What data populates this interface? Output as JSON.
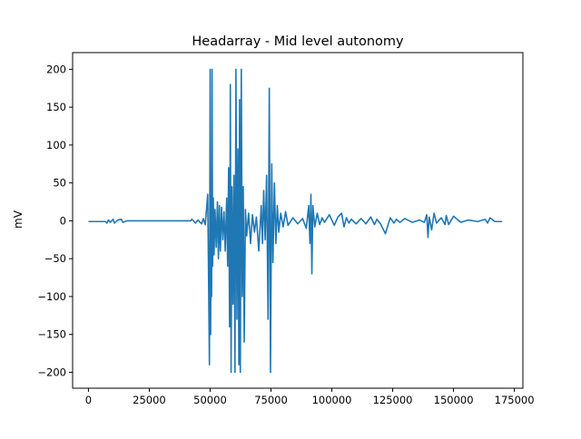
{
  "chart_data": {
    "type": "line",
    "title": "Headarray - Mid level autonomy",
    "xlabel": "",
    "ylabel": "mV",
    "xlim": [
      -6500,
      178500
    ],
    "ylim": [
      -221,
      222
    ],
    "xticks": [
      0,
      25000,
      50000,
      75000,
      100000,
      125000,
      150000,
      175000
    ],
    "xtick_labels": [
      "0",
      "25000",
      "50000",
      "75000",
      "100000",
      "125000",
      "150000",
      "175000"
    ],
    "yticks": [
      -200,
      -150,
      -100,
      -50,
      0,
      50,
      100,
      150,
      200
    ],
    "ytick_labels": [
      "−200",
      "−150",
      "−100",
      "−50",
      "0",
      "50",
      "100",
      "150",
      "200"
    ],
    "grid": false,
    "legend": false,
    "series": [
      {
        "color": "#1f77b4",
        "x": [
          0,
          7000,
          7600,
          8200,
          9000,
          10100,
          10700,
          12000,
          13500,
          14100,
          16000,
          20000,
          25000,
          30000,
          35000,
          40000,
          42000,
          42500,
          44000,
          45000,
          46500,
          47200,
          48000,
          49000,
          49300,
          49700,
          50000,
          50200,
          50400,
          50600,
          50800,
          51000,
          51300,
          51600,
          52000,
          52500,
          53000,
          53400,
          53800,
          54200,
          54700,
          55200,
          55700,
          56200,
          56800,
          57200,
          57600,
          58000,
          58300,
          58600,
          59000,
          59400,
          59800,
          60200,
          60600,
          61000,
          61400,
          61800,
          62100,
          62400,
          62800,
          63200,
          63600,
          64000,
          64500,
          65000,
          65800,
          66600,
          67400,
          68200,
          69000,
          70000,
          71000,
          71500,
          72000,
          72600,
          73200,
          73800,
          74300,
          74800,
          75300,
          75800,
          76400,
          77000,
          77600,
          78200,
          79000,
          80000,
          81000,
          82000,
          84000,
          86000,
          88000,
          89500,
          90500,
          91000,
          91400,
          91800,
          92200,
          93000,
          94000,
          95000,
          96000,
          97000,
          99000,
          101000,
          102500,
          104000,
          105000,
          106000,
          107000,
          108000,
          110000,
          112000,
          114000,
          116000,
          117500,
          118500,
          120000,
          122000,
          124000,
          125500,
          126500,
          128000,
          130000,
          133000,
          136000,
          138000,
          139000,
          139500,
          140000,
          141000,
          142000,
          143000,
          145000,
          146500,
          147000,
          148000,
          150000,
          153000,
          156000,
          160000,
          163000,
          164000,
          165000,
          167000,
          170000
        ],
        "values": [
          -1,
          -1,
          -3,
          1,
          -2,
          2,
          -3,
          1,
          2,
          -2,
          0,
          0,
          0,
          0,
          0,
          0,
          0,
          2,
          -3,
          1,
          -4,
          3,
          -5,
          35,
          -55,
          -190,
          200,
          -150,
          40,
          -100,
          200,
          -60,
          30,
          -45,
          15,
          -35,
          25,
          -50,
          20,
          -40,
          18,
          -25,
          12,
          -40,
          30,
          -60,
          70,
          -140,
          180,
          -200,
          45,
          -110,
          60,
          -200,
          200,
          -130,
          95,
          -190,
          160,
          -200,
          200,
          -100,
          45,
          -160,
          15,
          -20,
          10,
          -30,
          8,
          -15,
          5,
          -40,
          20,
          -30,
          40,
          -25,
          60,
          -130,
          175,
          -200,
          75,
          -55,
          50,
          -30,
          20,
          -15,
          10,
          -8,
          12,
          -6,
          4,
          -4,
          3,
          -10,
          20,
          -30,
          35,
          -70,
          20,
          -8,
          10,
          -5,
          4,
          -2,
          8,
          -6,
          5,
          10,
          -8,
          4,
          -3,
          2,
          -4,
          3,
          -4,
          5,
          -5,
          2,
          -4,
          -17,
          4,
          -3,
          2,
          -2,
          3,
          -2,
          1,
          -2,
          8,
          -22,
          5,
          -12,
          10,
          -3,
          4,
          -5,
          7,
          -5,
          6,
          -2,
          1,
          -1,
          2,
          -3,
          4,
          -1,
          -1
        ]
      }
    ]
  }
}
